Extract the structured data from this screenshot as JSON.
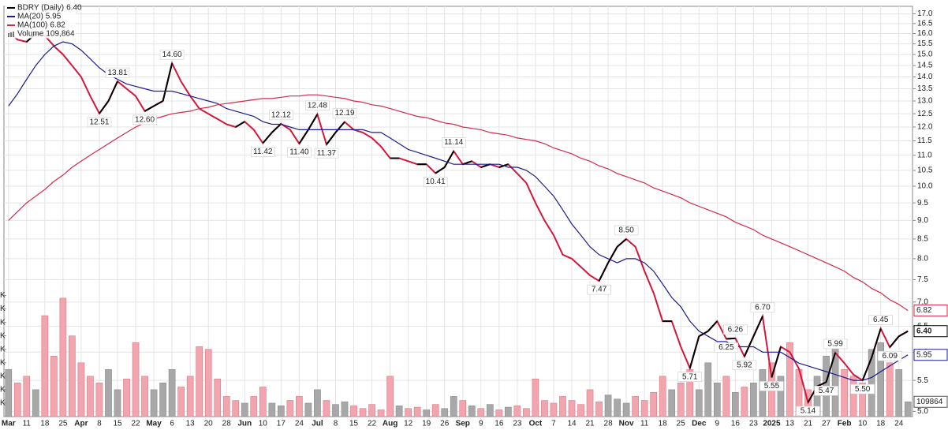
{
  "chart_data": {
    "type": "line",
    "log_scale": true,
    "grid": true,
    "legend": "top-left",
    "categories": [
      "Mar",
      null,
      "11",
      null,
      "18",
      null,
      "25",
      null,
      "Apr",
      null,
      "8",
      null,
      "15",
      null,
      "22",
      null,
      "May",
      null,
      "6",
      null,
      "13",
      null,
      "20",
      null,
      "28",
      null,
      "Jun",
      null,
      "10",
      null,
      "17",
      null,
      "24",
      null,
      "Jul",
      null,
      "8",
      null,
      "15",
      null,
      "22",
      null,
      "Aug",
      null,
      "12",
      null,
      "19",
      null,
      "26",
      null,
      "Sep",
      null,
      "9",
      null,
      "16",
      null,
      "23",
      null,
      "Oct",
      null,
      "7",
      null,
      "14",
      null,
      "21",
      null,
      "28",
      null,
      "Nov",
      null,
      "11",
      null,
      "18",
      null,
      "25",
      null,
      "Dec",
      null,
      "9",
      null,
      "16",
      null,
      "23",
      null,
      "2025",
      null,
      "13",
      null,
      "21",
      null,
      "27",
      null,
      "Feb",
      null,
      "10",
      null,
      "18",
      null,
      "24",
      null
    ],
    "series": [
      {
        "name": "BDRY (Daily)",
        "color": "#000000",
        "down_color": "#d4163c",
        "values": [
          16.1,
          15.7,
          15.6,
          16.0,
          15.9,
          15.4,
          15.0,
          14.5,
          14.0,
          13.2,
          12.51,
          13.0,
          13.81,
          13.5,
          13.2,
          12.6,
          12.8,
          13.0,
          14.6,
          13.8,
          13.2,
          12.7,
          12.5,
          12.3,
          12.1,
          12.0,
          12.2,
          11.9,
          11.42,
          11.8,
          12.12,
          11.9,
          11.4,
          11.9,
          12.48,
          11.37,
          11.8,
          12.19,
          11.9,
          11.8,
          11.6,
          11.3,
          10.9,
          10.9,
          10.8,
          10.7,
          10.7,
          10.41,
          10.6,
          11.14,
          10.7,
          10.8,
          10.6,
          10.7,
          10.6,
          10.7,
          10.4,
          10.1,
          9.5,
          9.0,
          8.6,
          8.1,
          8.0,
          7.8,
          7.6,
          7.47,
          7.9,
          8.3,
          8.5,
          8.3,
          7.7,
          7.2,
          6.6,
          6.6,
          6.1,
          5.71,
          6.3,
          6.4,
          6.6,
          6.25,
          6.26,
          5.92,
          6.3,
          6.7,
          5.55,
          6.1,
          6.0,
          5.7,
          5.14,
          5.4,
          5.47,
          5.99,
          5.8,
          5.6,
          5.5,
          5.9,
          6.45,
          6.09,
          6.3,
          6.4
        ],
        "value_labels": [
          null,
          null,
          null,
          null,
          null,
          null,
          null,
          null,
          null,
          null,
          "12.51",
          null,
          "13.81",
          null,
          null,
          "12.60",
          null,
          null,
          "14.60",
          null,
          null,
          null,
          null,
          null,
          null,
          null,
          null,
          null,
          "11.42",
          null,
          "12.12",
          null,
          "11.40",
          null,
          "12.48",
          "11.37",
          null,
          "12.19",
          null,
          null,
          null,
          null,
          null,
          null,
          null,
          null,
          null,
          "10.41",
          null,
          "11.14",
          null,
          null,
          null,
          null,
          null,
          null,
          null,
          null,
          null,
          null,
          null,
          null,
          null,
          null,
          null,
          "7.47",
          null,
          null,
          "8.50",
          null,
          null,
          null,
          null,
          null,
          null,
          "5.71",
          null,
          null,
          null,
          "6.25",
          "6.26",
          "5.92",
          null,
          "6.70",
          "5.55",
          null,
          null,
          null,
          "5.14",
          null,
          "5.47",
          "5.99",
          null,
          null,
          "5.50",
          null,
          "6.45",
          "6.09",
          null,
          "6.40"
        ]
      },
      {
        "name": "MA(20)",
        "color": "#1c1c8c",
        "values": [
          12.8,
          13.3,
          13.9,
          14.5,
          15.0,
          15.4,
          15.6,
          15.5,
          15.2,
          14.8,
          14.4,
          14.1,
          13.9,
          13.7,
          13.6,
          13.5,
          13.4,
          13.4,
          13.4,
          13.3,
          13.2,
          13.1,
          13.0,
          12.9,
          12.7,
          12.6,
          12.5,
          12.4,
          12.2,
          12.1,
          12.1,
          12.0,
          11.9,
          11.9,
          11.9,
          11.9,
          11.9,
          11.9,
          11.9,
          11.9,
          11.8,
          11.8,
          11.6,
          11.4,
          11.2,
          11.1,
          11.0,
          10.9,
          10.8,
          10.7,
          10.7,
          10.7,
          10.7,
          10.7,
          10.7,
          10.6,
          10.6,
          10.5,
          10.3,
          10.0,
          9.7,
          9.3,
          8.9,
          8.6,
          8.3,
          8.1,
          8.0,
          7.9,
          8.0,
          8.0,
          7.9,
          7.7,
          7.4,
          7.1,
          6.9,
          6.6,
          6.4,
          6.3,
          6.2,
          6.2,
          6.1,
          6.1,
          6.1,
          6.0,
          6.0,
          6.0,
          5.9,
          5.8,
          5.75,
          5.7,
          5.65,
          5.6,
          5.55,
          5.5,
          5.5,
          5.55,
          5.65,
          5.75,
          5.85,
          5.95
        ]
      },
      {
        "name": "MA(100)",
        "color": "#d42a4a",
        "values": [
          9.0,
          9.25,
          9.5,
          9.7,
          9.9,
          10.15,
          10.35,
          10.6,
          10.8,
          11.0,
          11.2,
          11.4,
          11.6,
          11.8,
          12.0,
          12.15,
          12.3,
          12.4,
          12.5,
          12.55,
          12.6,
          12.7,
          12.75,
          12.85,
          12.9,
          12.95,
          13.0,
          13.05,
          13.1,
          13.1,
          13.15,
          13.2,
          13.2,
          13.25,
          13.25,
          13.2,
          13.15,
          13.1,
          13.0,
          12.95,
          12.85,
          12.8,
          12.7,
          12.6,
          12.5,
          12.4,
          12.35,
          12.25,
          12.15,
          12.1,
          12.0,
          11.95,
          11.9,
          11.8,
          11.75,
          11.7,
          11.6,
          11.55,
          11.5,
          11.4,
          11.25,
          11.15,
          11.05,
          10.9,
          10.8,
          10.65,
          10.55,
          10.4,
          10.3,
          10.2,
          10.1,
          9.95,
          9.85,
          9.75,
          9.65,
          9.5,
          9.4,
          9.3,
          9.2,
          9.1,
          8.95,
          8.85,
          8.75,
          8.6,
          8.5,
          8.4,
          8.3,
          8.2,
          8.1,
          8.0,
          7.9,
          7.8,
          7.7,
          7.55,
          7.45,
          7.3,
          7.2,
          7.05,
          6.95,
          6.82
        ]
      },
      {
        "name": "Volume",
        "type": "bar",
        "axis": "y2",
        "color": "#a8a8a8",
        "down_color": "#f2a5ae",
        "values": [
          350000,
          250000,
          300000,
          200000,
          750000,
          450000,
          880000,
          600000,
          400000,
          300000,
          250000,
          350000,
          200000,
          280000,
          550000,
          300000,
          200000,
          250000,
          350000,
          220000,
          300000,
          520000,
          500000,
          280000,
          150000,
          120000,
          100000,
          150000,
          220000,
          100000,
          80000,
          120000,
          150000,
          100000,
          200000,
          120000,
          90000,
          110000,
          80000,
          60000,
          90000,
          50000,
          300000,
          80000,
          60000,
          70000,
          50000,
          90000,
          60000,
          150000,
          120000,
          80000,
          60000,
          90000,
          50000,
          70000,
          80000,
          60000,
          280000,
          120000,
          100000,
          150000,
          120000,
          90000,
          200000,
          110000,
          160000,
          130000,
          100000,
          150000,
          120000,
          180000,
          300000,
          200000,
          250000,
          350000,
          200000,
          400000,
          250000,
          300000,
          180000,
          220000,
          250000,
          350000,
          400000,
          300000,
          550000,
          350000,
          200000,
          300000,
          450000,
          550000,
          350000,
          300000,
          250000,
          500000,
          550000,
          400000,
          350000,
          109864
        ],
        "value_labels": [
          null,
          null,
          null,
          null,
          null,
          null,
          null,
          null,
          null,
          null,
          null,
          null,
          null,
          null,
          null,
          null,
          null,
          null,
          null,
          null,
          null,
          null,
          null,
          null,
          null,
          null,
          null,
          null,
          null,
          null,
          null,
          null,
          null,
          null,
          null,
          null,
          null,
          null,
          null,
          null,
          null,
          null,
          null,
          null,
          null,
          null,
          null,
          null,
          null,
          null,
          null,
          null,
          null,
          null,
          null,
          null,
          null,
          null,
          null,
          null,
          null,
          null,
          null,
          null,
          null,
          null,
          null,
          null,
          null,
          null,
          null,
          null,
          null,
          null,
          null,
          null,
          null,
          null,
          null,
          null,
          null,
          null,
          null,
          null,
          null,
          null,
          null,
          null,
          null,
          null,
          null,
          null,
          null,
          null,
          null,
          null,
          null,
          null,
          null,
          "109,864"
        ]
      }
    ],
    "ylim": [
      4.92,
      17.4
    ],
    "yticks": [
      {
        "value": 5,
        "label": "5.0"
      },
      5.5,
      {
        "value": 6,
        "label": "6.0"
      },
      6.5,
      {
        "value": 7,
        "label": "7.0"
      },
      7.5,
      {
        "value": 8,
        "label": "8.0"
      },
      8.5,
      {
        "value": 9,
        "label": "9.0"
      },
      9.5,
      {
        "value": 10,
        "label": "10.0"
      },
      10.5,
      {
        "value": 11,
        "label": "11.0"
      },
      11.5,
      {
        "value": 12,
        "label": "12.0"
      },
      12.5,
      {
        "value": 13,
        "label": "13.0"
      },
      13.5,
      {
        "value": 14,
        "label": "14.0"
      },
      14.5,
      {
        "value": 15,
        "label": "15.0"
      },
      15.5,
      {
        "value": 16,
        "label": "16.0"
      },
      16.5,
      {
        "value": 17,
        "label": "17.0"
      }
    ],
    "y2lim": [
      0,
      3050000
    ],
    "y2ticks": [
      {
        "value": 100000,
        "label": "K"
      },
      {
        "value": 200000,
        "label": "K"
      },
      {
        "value": 300000,
        "label": "K"
      },
      {
        "value": 400000,
        "label": "K"
      },
      {
        "value": 500000,
        "label": "K"
      },
      {
        "value": 600000,
        "label": "K"
      },
      {
        "value": 700000,
        "label": "K"
      },
      {
        "value": 800000,
        "label": "K"
      },
      {
        "value": 900000,
        "label": "K"
      }
    ]
  }
}
